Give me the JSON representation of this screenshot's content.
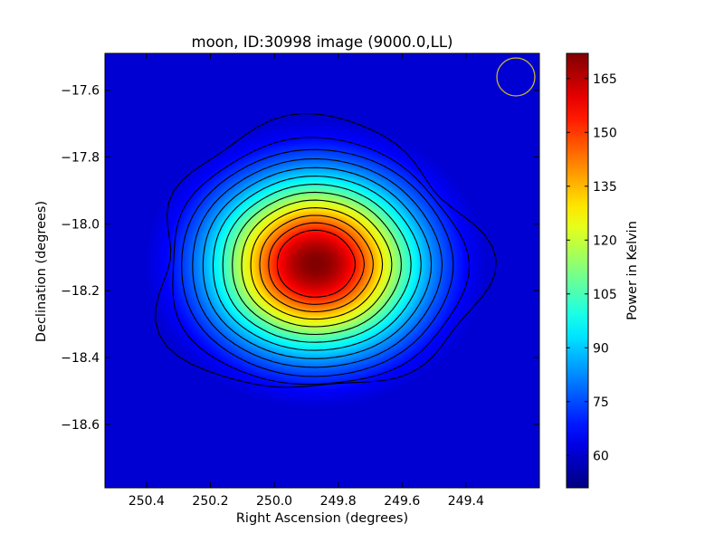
{
  "chart_data": {
    "type": "heatmap",
    "title": "moon, ID:30998 image (9000.0,LL)",
    "xlabel": "Right Ascension (degrees)",
    "ylabel": "Declination (degrees)",
    "xlim": [
      250.53,
      249.17
    ],
    "ylim": [
      -18.79,
      -17.49
    ],
    "x_ticks": [
      250.4,
      250.2,
      250.0,
      249.8,
      249.6,
      249.4
    ],
    "x_tick_labels": [
      "250.4",
      "250.2",
      "250.0",
      "249.8",
      "249.6",
      "249.4"
    ],
    "y_ticks": [
      -17.6,
      -17.8,
      -18.0,
      -18.2,
      -18.4,
      -18.6
    ],
    "y_tick_labels": [
      "−17.6",
      "−17.8",
      "−18.0",
      "−18.2",
      "−18.4",
      "−18.6"
    ],
    "colorbar": {
      "label": "Power in Kelvin",
      "range": [
        51,
        172
      ],
      "ticks": [
        60,
        75,
        90,
        105,
        120,
        135,
        150,
        165
      ],
      "tick_labels": [
        "60",
        "75",
        "90",
        "105",
        "120",
        "135",
        "150",
        "165"
      ],
      "colormap": "jet"
    },
    "source": {
      "center_ra": 249.87,
      "center_dec": -18.12,
      "peak_kelvin": 172,
      "background_kelvin": 56,
      "contour_count": 13
    },
    "beam_marker": {
      "ra": 249.25,
      "dec": -17.56,
      "color": "#c8b82a"
    },
    "grid": false
  }
}
